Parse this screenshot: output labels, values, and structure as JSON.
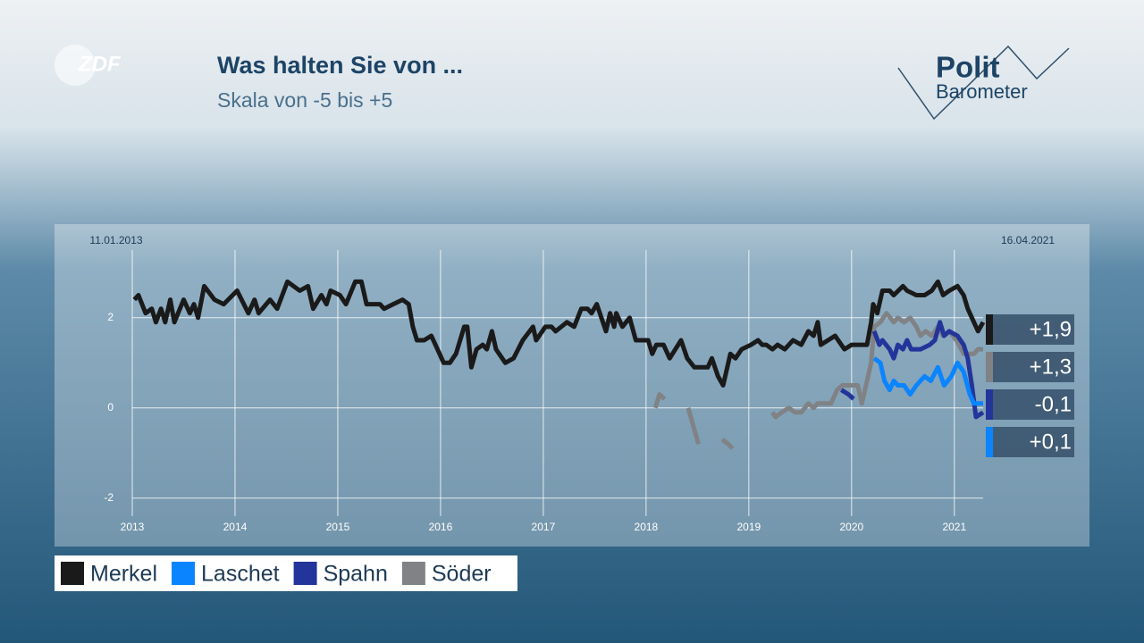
{
  "broadcaster": "ZDF",
  "brand": {
    "line1": "Polit",
    "line2": "Barometer"
  },
  "chart_data": {
    "type": "line",
    "title": "Was halten Sie von ...",
    "subtitle": "Skala von -5 bis +5",
    "x_start_label": "11.01.2013",
    "x_end_label": "16.04.2021",
    "xlim": [
      2013,
      2021.28
    ],
    "xticks": [
      2013,
      2014,
      2015,
      2016,
      2017,
      2018,
      2019,
      2020,
      2021
    ],
    "ylim": [
      -2.4,
      3.5
    ],
    "yticks": [
      -2,
      0,
      2
    ],
    "grid": true,
    "series": [
      {
        "name": "Merkel",
        "color": "#1a1a1a",
        "x": [
          2013.02,
          2013.06,
          2013.13,
          2013.19,
          2013.23,
          2013.28,
          2013.32,
          2013.37,
          2013.41,
          2013.5,
          2013.56,
          2013.6,
          2013.64,
          2013.7,
          2013.8,
          2013.89,
          2014.02,
          2014.13,
          2014.19,
          2014.23,
          2014.34,
          2014.41,
          2014.51,
          2014.63,
          2014.71,
          2014.76,
          2014.84,
          2014.89,
          2014.93,
          2015.02,
          2015.08,
          2015.17,
          2015.23,
          2015.28,
          2015.41,
          2015.45,
          2015.54,
          2015.63,
          2015.69,
          2015.73,
          2015.77,
          2015.84,
          2015.91,
          2015.97,
          2016.03,
          2016.09,
          2016.15,
          2016.23,
          2016.26,
          2016.3,
          2016.35,
          2016.41,
          2016.45,
          2016.5,
          2016.54,
          2016.63,
          2016.71,
          2016.8,
          2016.9,
          2016.93,
          2017.02,
          2017.08,
          2017.12,
          2017.23,
          2017.3,
          2017.37,
          2017.43,
          2017.47,
          2017.52,
          2017.58,
          2017.61,
          2017.65,
          2017.69,
          2017.71,
          2017.77,
          2017.84,
          2017.9,
          2018.02,
          2018.06,
          2018.1,
          2018.17,
          2018.23,
          2018.34,
          2018.4,
          2018.47,
          2018.6,
          2018.64,
          2018.7,
          2018.75,
          2018.82,
          2018.87,
          2018.93,
          2019.02,
          2019.09,
          2019.13,
          2019.17,
          2019.23,
          2019.28,
          2019.35,
          2019.43,
          2019.51,
          2019.58,
          2019.63,
          2019.67,
          2019.7,
          2019.84,
          2019.93,
          2020.0,
          2020.04,
          2020.15,
          2020.19,
          2020.21,
          2020.25,
          2020.3,
          2020.37,
          2020.41,
          2020.5,
          2020.54,
          2020.63,
          2020.71,
          2020.78,
          2020.84,
          2020.89,
          2020.95,
          2021.03,
          2021.09,
          2021.13,
          2021.19,
          2021.23,
          2021.28
        ],
        "values": [
          2.4,
          2.5,
          2.1,
          2.2,
          1.9,
          2.2,
          1.9,
          2.4,
          1.9,
          2.4,
          2.1,
          2.3,
          2.0,
          2.7,
          2.4,
          2.3,
          2.6,
          2.1,
          2.4,
          2.1,
          2.4,
          2.2,
          2.8,
          2.6,
          2.7,
          2.2,
          2.5,
          2.3,
          2.6,
          2.5,
          2.3,
          2.8,
          2.8,
          2.3,
          2.3,
          2.2,
          2.3,
          2.4,
          2.3,
          1.8,
          1.5,
          1.5,
          1.6,
          1.3,
          1.0,
          1.0,
          1.2,
          1.8,
          1.8,
          0.9,
          1.3,
          1.4,
          1.3,
          1.7,
          1.3,
          1.0,
          1.1,
          1.5,
          1.8,
          1.5,
          1.8,
          1.8,
          1.7,
          1.9,
          1.8,
          2.2,
          2.2,
          2.1,
          2.3,
          1.9,
          1.7,
          2.1,
          1.8,
          2.1,
          1.8,
          2.0,
          1.5,
          1.5,
          1.2,
          1.4,
          1.4,
          1.1,
          1.5,
          1.1,
          0.9,
          0.9,
          1.1,
          0.7,
          0.5,
          1.2,
          1.1,
          1.3,
          1.4,
          1.5,
          1.4,
          1.4,
          1.3,
          1.4,
          1.3,
          1.5,
          1.4,
          1.7,
          1.6,
          1.9,
          1.4,
          1.6,
          1.3,
          1.4,
          1.4,
          1.4,
          1.9,
          2.3,
          2.1,
          2.6,
          2.6,
          2.5,
          2.7,
          2.6,
          2.5,
          2.5,
          2.6,
          2.8,
          2.5,
          2.6,
          2.7,
          2.5,
          2.2,
          1.9,
          1.7,
          1.9
        ],
        "value_labels": [
          null,
          null,
          null,
          null,
          null,
          null,
          null,
          null,
          null,
          null,
          null,
          null,
          null,
          null,
          null,
          null,
          null,
          null,
          null,
          null,
          null,
          null,
          null,
          null,
          null,
          null,
          null,
          null,
          null,
          null,
          null,
          null,
          null,
          null,
          null,
          null,
          null,
          null,
          null,
          null,
          null,
          null,
          null,
          null,
          null,
          null,
          null,
          null,
          null,
          null,
          null,
          null,
          null,
          null,
          null,
          null,
          null,
          null,
          null,
          null,
          null,
          null,
          null,
          null,
          null,
          null,
          null,
          null,
          null,
          null,
          null,
          null,
          null,
          null,
          null,
          null,
          null,
          null,
          null,
          null,
          null,
          null,
          null,
          null,
          null,
          null,
          null,
          null,
          null,
          null,
          null,
          null,
          null,
          null,
          null,
          null,
          null,
          null,
          null,
          null,
          null,
          null,
          null,
          null,
          null,
          null,
          null,
          null,
          null,
          null,
          null,
          null,
          null,
          null,
          null,
          null,
          null,
          null,
          null,
          null,
          null,
          null,
          null,
          null,
          null,
          null,
          null,
          null,
          null,
          "+1,9"
        ]
      },
      {
        "name": "Laschet",
        "color": "#0a84ff",
        "x": [
          2020.22,
          2020.28,
          2020.32,
          2020.37,
          2020.41,
          2020.45,
          2020.51,
          2020.57,
          2020.63,
          2020.71,
          2020.77,
          2020.84,
          2020.9,
          2020.97,
          2021.03,
          2021.09,
          2021.15,
          2021.19,
          2021.28
        ],
        "values": [
          1.1,
          1.0,
          0.6,
          0.4,
          0.6,
          0.5,
          0.5,
          0.3,
          0.5,
          0.7,
          0.6,
          0.9,
          0.5,
          0.7,
          1.0,
          0.8,
          0.3,
          0.1,
          0.1
        ],
        "value_labels": [
          null,
          null,
          null,
          null,
          null,
          null,
          null,
          null,
          null,
          null,
          null,
          null,
          null,
          null,
          null,
          null,
          null,
          null,
          "+0,1"
        ]
      },
      {
        "name": "Spahn",
        "color": "#23349a",
        "x": [
          2019.9,
          2019.97,
          2020.02,
          2020.12,
          2020.22,
          2020.27,
          2020.3,
          2020.37,
          2020.41,
          2020.45,
          2020.5,
          2020.54,
          2020.58,
          2020.67,
          2020.76,
          2020.81,
          2020.86,
          2020.9,
          2020.95,
          2021.03,
          2021.09,
          2021.13,
          2021.17,
          2021.21,
          2021.28
        ],
        "values": [
          0.4,
          0.3,
          0.2,
          null,
          1.7,
          1.4,
          1.5,
          1.3,
          1.1,
          1.4,
          1.3,
          1.5,
          1.3,
          1.3,
          1.4,
          1.5,
          1.9,
          1.6,
          1.7,
          1.6,
          1.4,
          1.1,
          0.5,
          -0.2,
          -0.1
        ],
        "value_labels": [
          null,
          null,
          null,
          null,
          null,
          null,
          null,
          null,
          null,
          null,
          null,
          null,
          null,
          null,
          null,
          null,
          null,
          null,
          null,
          null,
          null,
          null,
          null,
          null,
          "-0,1"
        ]
      },
      {
        "name": "Söder",
        "color": "#808285",
        "x": [
          2018.09,
          2018.13,
          2018.18,
          2018.3,
          2018.41,
          2018.51,
          2018.62,
          2018.74,
          2018.8,
          2018.84,
          2019.03,
          2019.23,
          2019.26,
          2019.32,
          2019.39,
          2019.45,
          2019.51,
          2019.58,
          2019.63,
          2019.67,
          2019.71,
          2019.8,
          2019.86,
          2019.91,
          2020.02,
          2020.06,
          2020.1,
          2020.15,
          2020.19,
          2020.22,
          2020.28,
          2020.34,
          2020.41,
          2020.45,
          2020.51,
          2020.57,
          2020.63,
          2020.67,
          2020.72,
          2020.78,
          2020.84,
          2020.89,
          2020.95,
          2021.02,
          2021.09,
          2021.13,
          2021.19,
          2021.23,
          2021.28
        ],
        "values": [
          0.0,
          0.3,
          0.2,
          null,
          0.0,
          -0.8,
          null,
          -0.7,
          -0.8,
          -0.9,
          null,
          -0.1,
          -0.2,
          -0.1,
          0.0,
          -0.1,
          -0.1,
          0.1,
          0.0,
          0.1,
          0.1,
          0.1,
          0.4,
          0.5,
          0.5,
          0.5,
          0.1,
          0.6,
          1.0,
          1.8,
          1.9,
          2.1,
          1.9,
          2.0,
          1.9,
          2.0,
          1.8,
          1.6,
          1.7,
          1.6,
          1.8,
          1.6,
          1.7,
          1.5,
          1.2,
          1.2,
          1.2,
          1.3,
          1.3
        ],
        "value_labels": [
          null,
          null,
          null,
          null,
          null,
          null,
          null,
          null,
          null,
          null,
          null,
          null,
          null,
          null,
          null,
          null,
          null,
          null,
          null,
          null,
          null,
          null,
          null,
          null,
          null,
          null,
          null,
          null,
          null,
          null,
          null,
          null,
          null,
          null,
          null,
          null,
          null,
          null,
          null,
          null,
          null,
          null,
          null,
          null,
          null,
          null,
          null,
          null,
          "+1,3"
        ]
      }
    ]
  }
}
